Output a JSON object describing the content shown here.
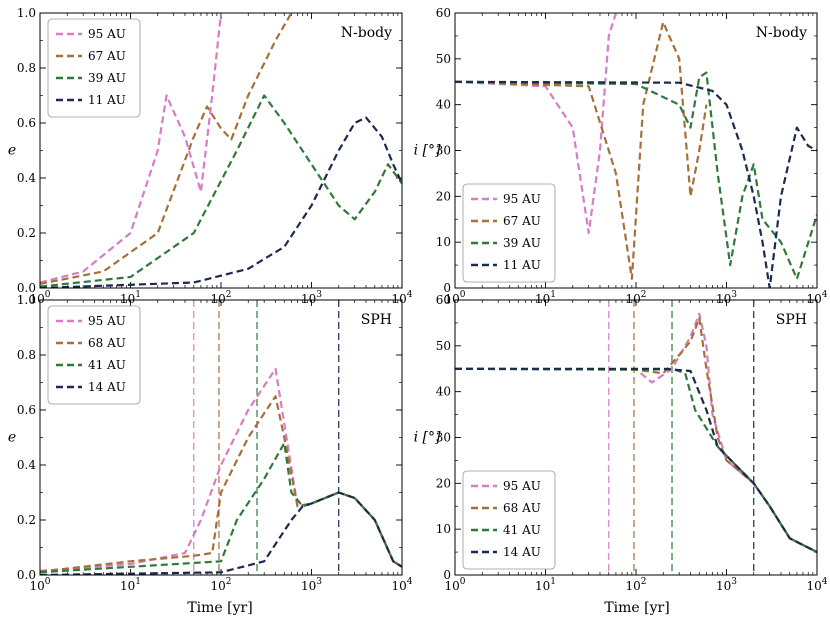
{
  "figure": {
    "xlabel": "Time [yr]"
  },
  "colors": {
    "95": "#d97cc7",
    "68": "#a5703a",
    "41": "#2f7a3a",
    "14": "#1b2a4e"
  },
  "chart_data": [
    {
      "id": "e-nbody",
      "type": "line",
      "title": "N-body",
      "xscale": "log",
      "xlim": [
        1,
        10000
      ],
      "ylim": [
        0,
        1.0
      ],
      "yticks": [
        "0.0",
        "0.2",
        "0.4",
        "0.6",
        "0.8",
        "1.0"
      ],
      "ylabel": "e",
      "xticks": [
        "10^0",
        "10^1",
        "10^2",
        "10^3",
        "10^4"
      ],
      "legend": {
        "position": "top-left",
        "labels": [
          "95 AU",
          "67 AU",
          "39 AU",
          "11 AU"
        ]
      },
      "series": [
        {
          "name": "95 AU",
          "color_key": "95",
          "style": "dashed",
          "points": [
            [
              1,
              0.02
            ],
            [
              3,
              0.06
            ],
            [
              10,
              0.2
            ],
            [
              20,
              0.5
            ],
            [
              25,
              0.7
            ],
            [
              40,
              0.55
            ],
            [
              60,
              0.35
            ],
            [
              80,
              0.7
            ],
            [
              100,
              1.0
            ]
          ]
        },
        {
          "name": "67 AU",
          "color_key": "68",
          "style": "dashed",
          "points": [
            [
              1,
              0.015
            ],
            [
              5,
              0.06
            ],
            [
              20,
              0.2
            ],
            [
              50,
              0.55
            ],
            [
              70,
              0.66
            ],
            [
              100,
              0.58
            ],
            [
              130,
              0.54
            ],
            [
              200,
              0.7
            ],
            [
              400,
              0.9
            ],
            [
              600,
              1.0
            ]
          ]
        },
        {
          "name": "39 AU",
          "color_key": "41",
          "style": "dashed",
          "points": [
            [
              1,
              0.005
            ],
            [
              10,
              0.04
            ],
            [
              50,
              0.2
            ],
            [
              150,
              0.5
            ],
            [
              300,
              0.7
            ],
            [
              500,
              0.6
            ],
            [
              1000,
              0.45
            ],
            [
              2000,
              0.3
            ],
            [
              3000,
              0.25
            ],
            [
              5000,
              0.35
            ],
            [
              7000,
              0.45
            ],
            [
              10000,
              0.38
            ]
          ]
        },
        {
          "name": "11 AU",
          "color_key": "14",
          "style": "dashed",
          "points": [
            [
              1,
              0.0
            ],
            [
              50,
              0.02
            ],
            [
              200,
              0.07
            ],
            [
              500,
              0.15
            ],
            [
              1000,
              0.3
            ],
            [
              2000,
              0.5
            ],
            [
              3000,
              0.6
            ],
            [
              4000,
              0.62
            ],
            [
              6000,
              0.55
            ],
            [
              8000,
              0.45
            ],
            [
              10000,
              0.38
            ]
          ]
        }
      ]
    },
    {
      "id": "i-nbody",
      "type": "line",
      "title": "N-body",
      "xscale": "log",
      "xlim": [
        1,
        10000
      ],
      "ylim": [
        0,
        60
      ],
      "yticks": [
        "0",
        "10",
        "20",
        "30",
        "40",
        "50",
        "60"
      ],
      "ylabel": "i [°]",
      "xticks": [
        "10^0",
        "10^1",
        "10^2",
        "10^3",
        "10^4"
      ],
      "legend": {
        "position": "bottom-left",
        "labels": [
          "95 AU",
          "67 AU",
          "39 AU",
          "11 AU"
        ]
      },
      "series": [
        {
          "name": "95 AU",
          "color_key": "95",
          "style": "dashed",
          "points": [
            [
              1,
              45
            ],
            [
              10,
              44
            ],
            [
              20,
              35
            ],
            [
              30,
              12
            ],
            [
              40,
              30
            ],
            [
              50,
              55
            ],
            [
              60,
              60
            ]
          ]
        },
        {
          "name": "67 AU",
          "color_key": "68",
          "style": "dashed",
          "points": [
            [
              1,
              45
            ],
            [
              30,
              44
            ],
            [
              60,
              25
            ],
            [
              90,
              2
            ],
            [
              120,
              40
            ],
            [
              200,
              58
            ],
            [
              300,
              50
            ],
            [
              400,
              20
            ],
            [
              500,
              30
            ],
            [
              600,
              40
            ]
          ]
        },
        {
          "name": "39 AU",
          "color_key": "41",
          "style": "dashed",
          "points": [
            [
              1,
              45
            ],
            [
              100,
              44.5
            ],
            [
              300,
              40
            ],
            [
              400,
              35
            ],
            [
              500,
              46
            ],
            [
              600,
              47
            ],
            [
              800,
              25
            ],
            [
              1100,
              5
            ],
            [
              1500,
              20
            ],
            [
              2000,
              27
            ],
            [
              2500,
              15
            ],
            [
              4000,
              10
            ],
            [
              6000,
              2
            ],
            [
              10000,
              16
            ]
          ]
        },
        {
          "name": "11 AU",
          "color_key": "14",
          "style": "dashed",
          "points": [
            [
              1,
              45
            ],
            [
              300,
              44.8
            ],
            [
              700,
              43
            ],
            [
              1000,
              40
            ],
            [
              1500,
              30
            ],
            [
              2000,
              20
            ],
            [
              2500,
              10
            ],
            [
              3000,
              0
            ],
            [
              4000,
              20
            ],
            [
              6000,
              35
            ],
            [
              8000,
              31
            ],
            [
              10000,
              30
            ]
          ]
        }
      ]
    },
    {
      "id": "e-sph",
      "type": "line",
      "title": "SPH",
      "xscale": "log",
      "xlim": [
        1,
        10000
      ],
      "ylim": [
        0,
        1.0
      ],
      "yticks": [
        "0.0",
        "0.2",
        "0.4",
        "0.6",
        "0.8",
        "1.0"
      ],
      "ylabel": "e",
      "xticks": [
        "10^0",
        "10^1",
        "10^2",
        "10^3",
        "10^4"
      ],
      "legend": {
        "position": "top-left",
        "labels": [
          "95 AU",
          "68 AU",
          "41 AU",
          "14 AU"
        ]
      },
      "vlines": [
        {
          "x": 50,
          "color_key": "95"
        },
        {
          "x": 95,
          "color_key": "68"
        },
        {
          "x": 250,
          "color_key": "41"
        },
        {
          "x": 2000,
          "color_key": "14"
        }
      ],
      "series": [
        {
          "name": "95 AU",
          "color_key": "95",
          "style": "dashed",
          "points": [
            [
              1,
              0.015
            ],
            [
              10,
              0.04
            ],
            [
              40,
              0.08
            ],
            [
              60,
              0.2
            ],
            [
              100,
              0.4
            ],
            [
              200,
              0.6
            ],
            [
              400,
              0.75
            ],
            [
              500,
              0.55
            ],
            [
              700,
              0.25
            ],
            [
              1000,
              0.26
            ],
            [
              2000,
              0.3
            ],
            [
              3000,
              0.28
            ],
            [
              5000,
              0.2
            ],
            [
              8000,
              0.05
            ],
            [
              10000,
              0.03
            ]
          ]
        },
        {
          "name": "68 AU",
          "color_key": "68",
          "style": "dashed",
          "points": [
            [
              1,
              0.012
            ],
            [
              10,
              0.05
            ],
            [
              50,
              0.07
            ],
            [
              80,
              0.08
            ],
            [
              100,
              0.3
            ],
            [
              200,
              0.5
            ],
            [
              400,
              0.65
            ],
            [
              500,
              0.5
            ],
            [
              700,
              0.25
            ],
            [
              1000,
              0.26
            ],
            [
              2000,
              0.3
            ],
            [
              3000,
              0.28
            ],
            [
              5000,
              0.2
            ],
            [
              8000,
              0.05
            ],
            [
              10000,
              0.03
            ]
          ]
        },
        {
          "name": "41 AU",
          "color_key": "41",
          "style": "dashed",
          "points": [
            [
              1,
              0.01
            ],
            [
              10,
              0.03
            ],
            [
              100,
              0.05
            ],
            [
              150,
              0.2
            ],
            [
              300,
              0.35
            ],
            [
              500,
              0.48
            ],
            [
              600,
              0.3
            ],
            [
              800,
              0.25
            ],
            [
              1000,
              0.26
            ],
            [
              2000,
              0.3
            ],
            [
              3000,
              0.28
            ],
            [
              5000,
              0.2
            ],
            [
              8000,
              0.05
            ],
            [
              10000,
              0.03
            ]
          ]
        },
        {
          "name": "14 AU",
          "color_key": "14",
          "style": "dashed",
          "points": [
            [
              1,
              0.0
            ],
            [
              100,
              0.01
            ],
            [
              300,
              0.05
            ],
            [
              600,
              0.2
            ],
            [
              800,
              0.25
            ],
            [
              1000,
              0.26
            ],
            [
              2000,
              0.3
            ],
            [
              3000,
              0.28
            ],
            [
              5000,
              0.2
            ],
            [
              8000,
              0.05
            ],
            [
              10000,
              0.03
            ]
          ]
        }
      ]
    },
    {
      "id": "i-sph",
      "type": "line",
      "title": "SPH",
      "xscale": "log",
      "xlim": [
        1,
        10000
      ],
      "ylim": [
        0,
        60
      ],
      "yticks": [
        "0",
        "10",
        "20",
        "30",
        "40",
        "50",
        "60"
      ],
      "ylabel": "i [°]",
      "xticks": [
        "10^0",
        "10^1",
        "10^2",
        "10^3",
        "10^4"
      ],
      "legend": {
        "position": "bottom-left",
        "labels": [
          "95 AU",
          "68 AU",
          "41 AU",
          "14 AU"
        ]
      },
      "vlines": [
        {
          "x": 50,
          "color_key": "95"
        },
        {
          "x": 95,
          "color_key": "68"
        },
        {
          "x": 250,
          "color_key": "41"
        },
        {
          "x": 2000,
          "color_key": "14"
        }
      ],
      "series": [
        {
          "name": "95 AU",
          "color_key": "95",
          "style": "dashed",
          "points": [
            [
              1,
              45
            ],
            [
              100,
              44.9
            ],
            [
              150,
              42
            ],
            [
              250,
              45
            ],
            [
              400,
              52
            ],
            [
              500,
              57
            ],
            [
              600,
              50
            ],
            [
              700,
              35
            ],
            [
              1000,
              25
            ],
            [
              2000,
              20
            ],
            [
              3000,
              15
            ],
            [
              5000,
              8
            ],
            [
              10000,
              5
            ]
          ]
        },
        {
          "name": "68 AU",
          "color_key": "68",
          "style": "dashed",
          "points": [
            [
              1,
              45
            ],
            [
              100,
              44.8
            ],
            [
              200,
              44
            ],
            [
              300,
              48
            ],
            [
              400,
              51
            ],
            [
              500,
              56
            ],
            [
              600,
              45
            ],
            [
              800,
              30
            ],
            [
              1000,
              25
            ],
            [
              2000,
              20
            ],
            [
              3000,
              15
            ],
            [
              5000,
              8
            ],
            [
              10000,
              5
            ]
          ]
        },
        {
          "name": "41 AU",
          "color_key": "41",
          "style": "dashed",
          "points": [
            [
              1,
              45
            ],
            [
              150,
              44.8
            ],
            [
              250,
              45
            ],
            [
              350,
              44
            ],
            [
              450,
              36
            ],
            [
              600,
              32
            ],
            [
              800,
              28
            ],
            [
              1000,
              26
            ],
            [
              2000,
              20
            ],
            [
              3000,
              15
            ],
            [
              5000,
              8
            ],
            [
              10000,
              5
            ]
          ]
        },
        {
          "name": "14 AU",
          "color_key": "14",
          "style": "dashed",
          "points": [
            [
              1,
              45
            ],
            [
              200,
              45
            ],
            [
              400,
              44.5
            ],
            [
              600,
              36
            ],
            [
              800,
              28
            ],
            [
              1000,
              26
            ],
            [
              2000,
              20
            ],
            [
              3000,
              15
            ],
            [
              5000,
              8
            ],
            [
              10000,
              5
            ]
          ]
        }
      ]
    }
  ]
}
